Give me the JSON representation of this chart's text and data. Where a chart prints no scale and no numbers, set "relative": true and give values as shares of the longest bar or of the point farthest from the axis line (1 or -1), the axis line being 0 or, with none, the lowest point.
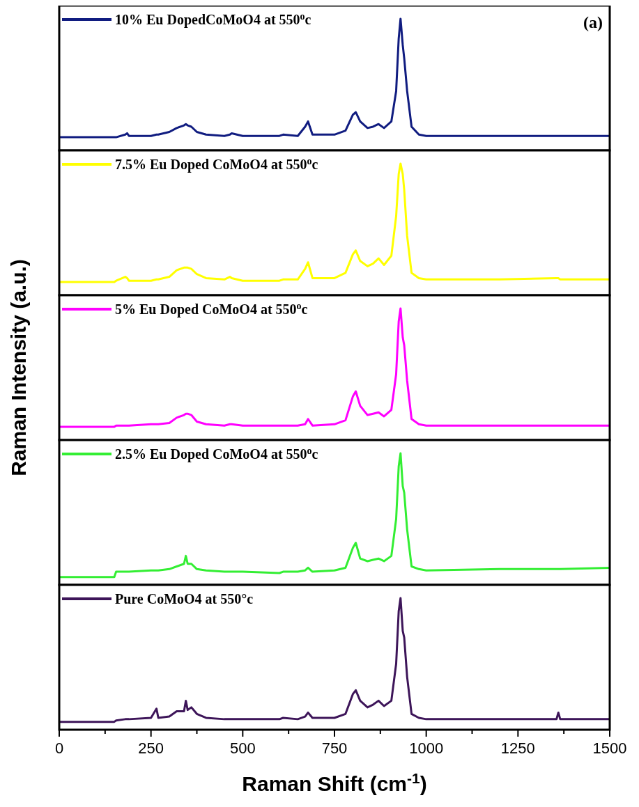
{
  "chart_data": [
    {
      "type": "line",
      "relative": true,
      "xlim": [
        0,
        1500
      ],
      "tick_labels": false,
      "legend": "top left",
      "annotations": [
        "(a)"
      ],
      "series": [
        {
          "name": "10% Eu DopedCoMoO4 at 550$^{o}$c",
          "color": "#101c80",
          "x": [
            0,
            150,
            155,
            180,
            185,
            190,
            250,
            265,
            270,
            300,
            320,
            340,
            345,
            350,
            360,
            375,
            400,
            450,
            465,
            470,
            500,
            600,
            610,
            650,
            670,
            678,
            690,
            750,
            780,
            800,
            808,
            820,
            840,
            855,
            870,
            885,
            905,
            918,
            925,
            930,
            936,
            940,
            948,
            960,
            980,
            1000,
            1200,
            1355,
            1360,
            1365,
            1500
          ],
          "values": [
            0.1,
            0.1,
            0.1,
            0.12,
            0.13,
            0.11,
            0.11,
            0.12,
            0.12,
            0.14,
            0.17,
            0.19,
            0.2,
            0.19,
            0.18,
            0.14,
            0.12,
            0.11,
            0.12,
            0.13,
            0.11,
            0.11,
            0.12,
            0.11,
            0.18,
            0.22,
            0.12,
            0.12,
            0.15,
            0.27,
            0.29,
            0.22,
            0.17,
            0.18,
            0.2,
            0.17,
            0.22,
            0.45,
            0.85,
            1.0,
            0.8,
            0.7,
            0.45,
            0.18,
            0.12,
            0.11,
            0.11,
            0.11,
            0.11,
            0.11,
            0.11
          ]
        }
      ]
    },
    {
      "type": "line",
      "relative": true,
      "xlim": [
        0,
        1500
      ],
      "tick_labels": false,
      "legend": "top left",
      "series": [
        {
          "name": "7.5% Eu Doped CoMoO4 at 550$^{o}$c",
          "color": "#ffff00",
          "x": [
            0,
            150,
            155,
            180,
            185,
            190,
            250,
            265,
            270,
            300,
            320,
            340,
            345,
            350,
            360,
            375,
            400,
            450,
            465,
            470,
            500,
            600,
            610,
            650,
            670,
            678,
            690,
            750,
            780,
            800,
            808,
            820,
            840,
            855,
            870,
            885,
            905,
            918,
            925,
            930,
            936,
            940,
            948,
            960,
            980,
            1000,
            1200,
            1355,
            1360,
            1365,
            1500
          ],
          "values": [
            0.1,
            0.1,
            0.11,
            0.14,
            0.13,
            0.11,
            0.11,
            0.12,
            0.12,
            0.14,
            0.19,
            0.21,
            0.21,
            0.21,
            0.2,
            0.16,
            0.13,
            0.12,
            0.14,
            0.13,
            0.11,
            0.11,
            0.12,
            0.12,
            0.2,
            0.25,
            0.13,
            0.13,
            0.17,
            0.31,
            0.34,
            0.26,
            0.22,
            0.24,
            0.28,
            0.23,
            0.3,
            0.6,
            0.92,
            1.0,
            0.92,
            0.8,
            0.45,
            0.17,
            0.13,
            0.12,
            0.12,
            0.13,
            0.13,
            0.12,
            0.12
          ]
        }
      ]
    },
    {
      "type": "line",
      "relative": true,
      "xlim": [
        0,
        1500
      ],
      "tick_labels": false,
      "legend": "top left",
      "ylabel": "Raman Intensity (a.u.)",
      "series": [
        {
          "name": "5% Eu Doped CoMoO4 at 550$^{o}$c",
          "color": "#ff00ff",
          "x": [
            0,
            150,
            155,
            180,
            185,
            190,
            250,
            265,
            270,
            300,
            320,
            340,
            345,
            350,
            360,
            375,
            400,
            450,
            465,
            470,
            500,
            600,
            610,
            650,
            670,
            678,
            690,
            750,
            780,
            800,
            808,
            820,
            840,
            855,
            870,
            885,
            905,
            918,
            925,
            930,
            936,
            940,
            948,
            960,
            980,
            1000,
            1200,
            1355,
            1360,
            1365,
            1500
          ],
          "values": [
            0.1,
            0.1,
            0.11,
            0.11,
            0.11,
            0.11,
            0.12,
            0.12,
            0.12,
            0.13,
            0.17,
            0.19,
            0.2,
            0.2,
            0.19,
            0.14,
            0.12,
            0.11,
            0.12,
            0.12,
            0.11,
            0.11,
            0.11,
            0.11,
            0.12,
            0.16,
            0.11,
            0.12,
            0.15,
            0.33,
            0.37,
            0.26,
            0.19,
            0.2,
            0.21,
            0.18,
            0.23,
            0.5,
            0.9,
            1.0,
            0.78,
            0.72,
            0.45,
            0.16,
            0.12,
            0.11,
            0.11,
            0.11,
            0.11,
            0.11,
            0.11
          ]
        }
      ]
    },
    {
      "type": "line",
      "relative": true,
      "xlim": [
        0,
        1500
      ],
      "tick_labels": false,
      "legend": "top left",
      "series": [
        {
          "name": "2.5% Eu Doped CoMoO4 at 550$^{o}$c",
          "color": "#33ee33",
          "x": [
            0,
            150,
            155,
            180,
            185,
            190,
            250,
            265,
            270,
            300,
            320,
            340,
            345,
            350,
            360,
            375,
            400,
            450,
            465,
            470,
            500,
            600,
            610,
            650,
            670,
            678,
            690,
            750,
            780,
            800,
            808,
            820,
            840,
            855,
            870,
            885,
            905,
            918,
            925,
            930,
            936,
            940,
            948,
            960,
            980,
            1000,
            1200,
            1355,
            1360,
            1365,
            1500
          ],
          "values": [
            0.06,
            0.06,
            0.1,
            0.1,
            0.1,
            0.1,
            0.11,
            0.11,
            0.11,
            0.12,
            0.14,
            0.16,
            0.22,
            0.16,
            0.16,
            0.12,
            0.11,
            0.1,
            0.1,
            0.1,
            0.1,
            0.09,
            0.1,
            0.1,
            0.11,
            0.13,
            0.1,
            0.11,
            0.13,
            0.28,
            0.32,
            0.2,
            0.18,
            0.19,
            0.2,
            0.18,
            0.22,
            0.5,
            0.9,
            1.0,
            0.75,
            0.7,
            0.42,
            0.14,
            0.12,
            0.11,
            0.12,
            0.12,
            0.12,
            0.12,
            0.13
          ]
        }
      ]
    },
    {
      "type": "line",
      "relative": true,
      "xlim": [
        0,
        1500
      ],
      "tick_labels": "x",
      "legend": "top left",
      "xlabel": "Raman Shift (cm$^{-1}$)",
      "xticks": [
        0,
        {
          "value": 125,
          "label": null
        },
        250,
        {
          "value": 375,
          "label": null
        },
        500,
        {
          "value": 625,
          "label": null
        },
        750,
        {
          "value": 875,
          "label": null
        },
        1000,
        {
          "value": 1125,
          "label": null
        },
        1250,
        {
          "value": 1375,
          "label": null
        },
        1500
      ],
      "series": [
        {
          "name": "Pure CoMoO4 at 550°c",
          "color": "#3d1559",
          "x": [
            0,
            150,
            155,
            180,
            185,
            190,
            250,
            265,
            270,
            300,
            320,
            340,
            345,
            350,
            360,
            375,
            400,
            450,
            465,
            470,
            500,
            600,
            610,
            650,
            670,
            678,
            690,
            750,
            780,
            800,
            808,
            820,
            840,
            855,
            870,
            885,
            905,
            918,
            925,
            930,
            936,
            940,
            948,
            960,
            980,
            1000,
            1200,
            1355,
            1360,
            1365,
            1500
          ],
          "values": [
            0.06,
            0.06,
            0.07,
            0.08,
            0.08,
            0.08,
            0.09,
            0.16,
            0.09,
            0.1,
            0.14,
            0.14,
            0.22,
            0.15,
            0.17,
            0.12,
            0.09,
            0.08,
            0.08,
            0.08,
            0.08,
            0.08,
            0.09,
            0.08,
            0.1,
            0.13,
            0.09,
            0.09,
            0.12,
            0.27,
            0.3,
            0.22,
            0.17,
            0.19,
            0.22,
            0.18,
            0.22,
            0.5,
            0.9,
            1.0,
            0.75,
            0.7,
            0.4,
            0.12,
            0.09,
            0.08,
            0.08,
            0.08,
            0.13,
            0.08,
            0.08
          ]
        }
      ]
    }
  ]
}
